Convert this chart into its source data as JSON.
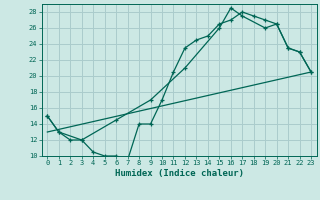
{
  "background_color": "#cce8e4",
  "grid_color": "#aacccc",
  "line_color": "#006655",
  "xlabel": "Humidex (Indice chaleur)",
  "ylim": [
    10,
    29
  ],
  "xlim": [
    -0.5,
    23.5
  ],
  "yticks": [
    10,
    12,
    14,
    16,
    18,
    20,
    22,
    24,
    26,
    28
  ],
  "xticks": [
    0,
    1,
    2,
    3,
    4,
    5,
    6,
    7,
    8,
    9,
    10,
    11,
    12,
    13,
    14,
    15,
    16,
    17,
    18,
    19,
    20,
    21,
    22,
    23
  ],
  "line1_x": [
    0,
    1,
    2,
    3,
    4,
    5,
    6,
    7,
    8,
    9,
    10,
    11,
    12,
    13,
    14,
    15,
    16,
    17,
    18,
    19,
    20,
    21,
    22,
    23
  ],
  "line1_y": [
    15,
    13,
    12,
    12,
    10.5,
    10,
    10,
    9.5,
    14,
    14,
    17,
    20.5,
    23.5,
    24.5,
    25,
    26.5,
    27,
    28,
    27.5,
    27,
    26.5,
    23.5,
    23,
    20.5
  ],
  "line2_x": [
    0,
    1,
    3,
    6,
    9,
    12,
    15,
    16,
    17,
    19,
    20,
    21,
    22,
    23
  ],
  "line2_y": [
    15,
    13,
    12,
    14.5,
    17,
    21,
    26,
    28.5,
    27.5,
    26,
    26.5,
    23.5,
    23,
    20.5
  ],
  "line3_x": [
    0,
    23
  ],
  "line3_y": [
    13,
    20.5
  ]
}
